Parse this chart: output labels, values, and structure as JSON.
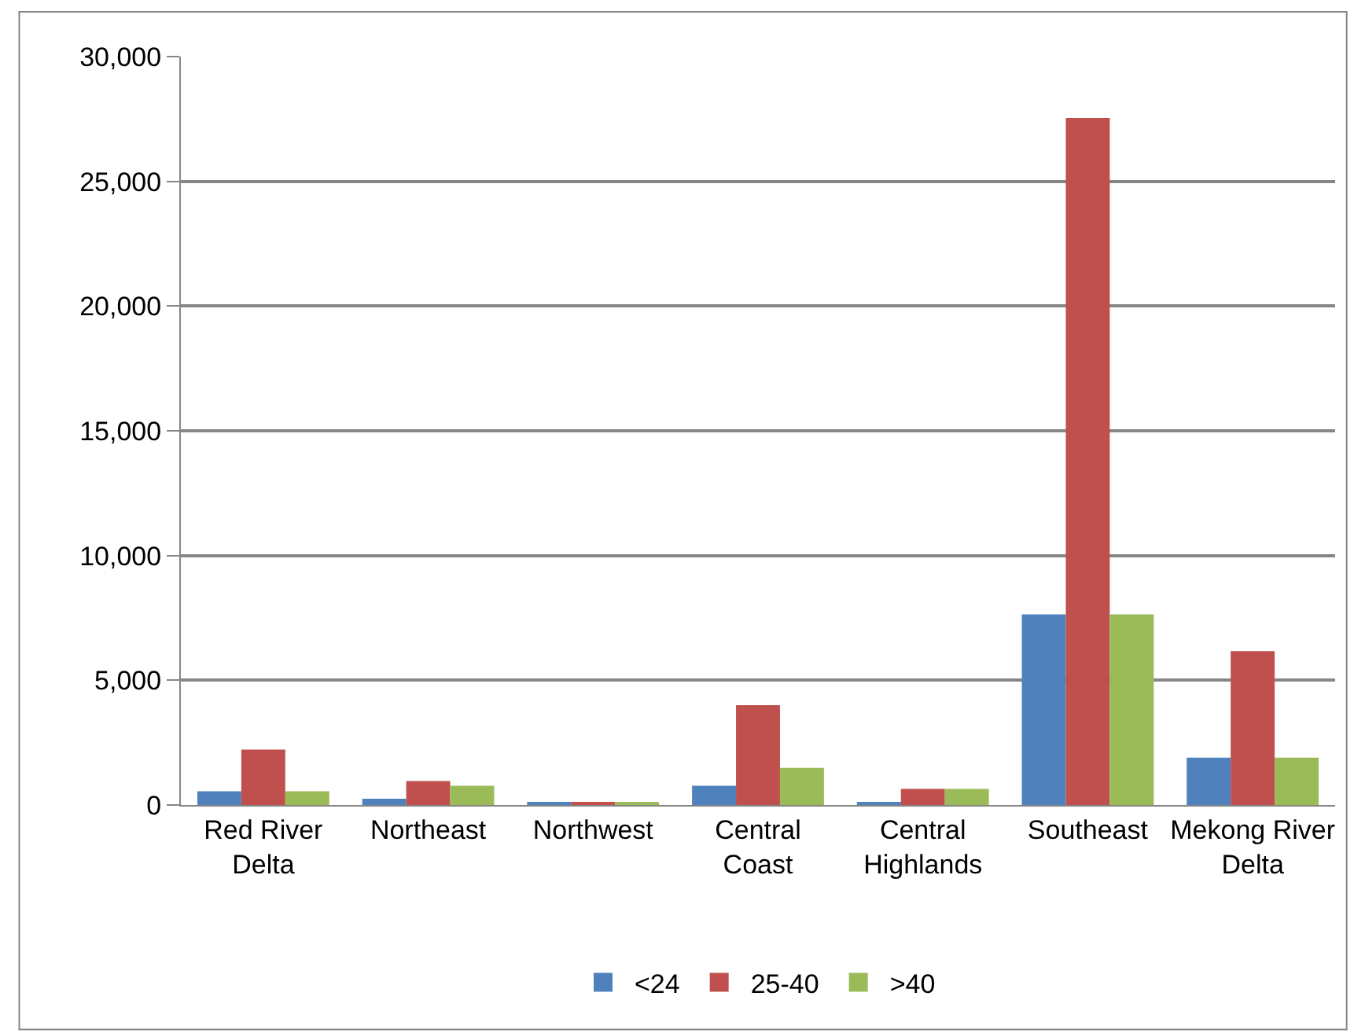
{
  "chart_data": {
    "type": "bar",
    "categories": [
      "Red River Delta",
      "Northeast",
      "Northwest",
      "Central Coast",
      "Central Highlands",
      "Southeast",
      "Mekong River Delta"
    ],
    "series": [
      {
        "name": "<24",
        "color": "#4f81bd",
        "values": [
          550,
          250,
          120,
          770,
          120,
          7640,
          1900
        ]
      },
      {
        "name": "25-40",
        "color": "#c0504d",
        "values": [
          2220,
          960,
          120,
          4000,
          650,
          27540,
          6170
        ]
      },
      {
        "name": ">40",
        "color": "#9bbb59",
        "values": [
          550,
          770,
          120,
          1490,
          650,
          7640,
          1900
        ]
      }
    ],
    "ylim": [
      0,
      30000
    ],
    "yticks": [
      {
        "value": 0,
        "label": "0"
      },
      {
        "value": 5000,
        "label": "5,000"
      },
      {
        "value": 10000,
        "label": "10,000"
      },
      {
        "value": 15000,
        "label": "15,000"
      },
      {
        "value": 20000,
        "label": "20,000"
      },
      {
        "value": 25000,
        "label": "25,000"
      },
      {
        "value": 30000,
        "label": "30,000"
      }
    ],
    "grid": "y",
    "legend": "bottom"
  }
}
